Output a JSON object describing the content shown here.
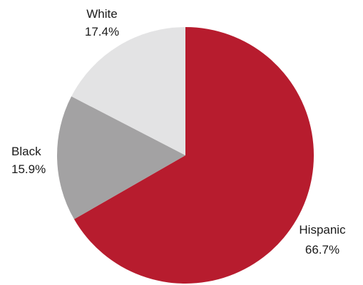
{
  "chart_data": {
    "type": "pie",
    "title": "",
    "slices": [
      {
        "label": "Hispanic",
        "value": 66.7,
        "value_label": "66.7%",
        "color": "#b71c2e"
      },
      {
        "label": "Black",
        "value": 15.9,
        "value_label": "15.9%",
        "color": "#a3a2a3"
      },
      {
        "label": "White",
        "value": 17.4,
        "value_label": "17.4%",
        "color": "#e3e3e4"
      }
    ],
    "start_angle": "12 o'clock",
    "direction": "clockwise",
    "legend": "none"
  }
}
